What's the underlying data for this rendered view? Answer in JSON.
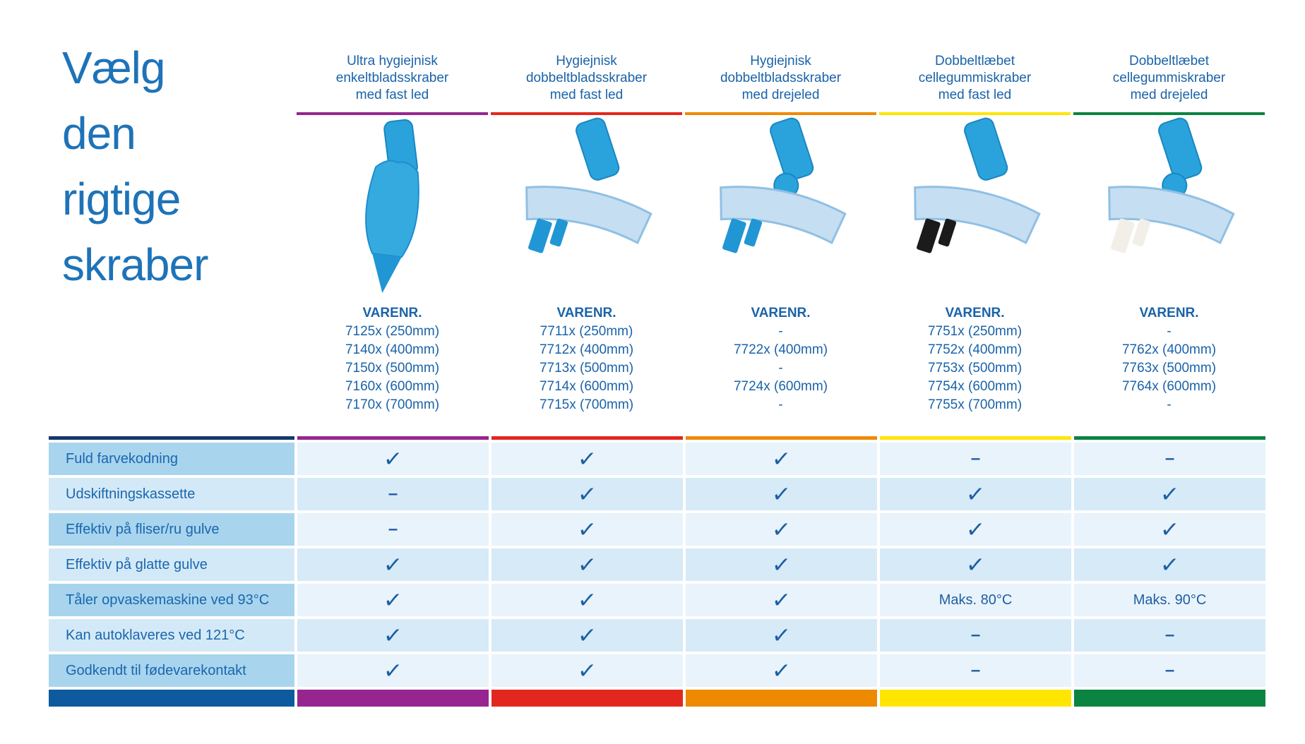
{
  "title": {
    "lines": [
      "Vælg",
      "den",
      "rigtige",
      "skraber"
    ],
    "color": "#1e73b8"
  },
  "varenr_heading": "VARENR.",
  "columns": [
    {
      "header_lines": [
        "Ultra hygiejnisk",
        "enkeltbladsskraber",
        "med fast led"
      ],
      "accent": "#97258f",
      "product_icon": "single-blade-squeegee-icon",
      "body_color": "#35aadf",
      "blade_color": "#2196d4",
      "items": [
        "7125x (250mm)",
        "7140x (400mm)",
        "7150x (500mm)",
        "7160x (600mm)",
        "7170x (700mm)"
      ]
    },
    {
      "header_lines": [
        "Hygiejnisk",
        "dobbeltbladsskraber",
        "med fast led"
      ],
      "accent": "#e2281e",
      "product_icon": "double-blade-squeegee-fixed-icon",
      "body_color": "#c6def1",
      "blade_color": "#2196d4",
      "items": [
        "7711x (250mm)",
        "7712x (400mm)",
        "7713x (500mm)",
        "7714x (600mm)",
        "7715x (700mm)"
      ]
    },
    {
      "header_lines": [
        "Hygiejnisk",
        "dobbeltbladsskraber",
        "med drejeled"
      ],
      "accent": "#ee8a00",
      "product_icon": "double-blade-squeegee-swivel-icon",
      "body_color": "#c6def1",
      "blade_color": "#2196d4",
      "items": [
        "-",
        "7722x (400mm)",
        "-",
        "7724x (600mm)",
        "-"
      ]
    },
    {
      "header_lines": [
        "Dobbeltlæbet",
        "cellegummiskraber",
        "med fast led"
      ],
      "accent": "#ffe500",
      "product_icon": "foam-rubber-squeegee-fixed-icon",
      "body_color": "#c6def1",
      "blade_color": "#1b1b1b",
      "items": [
        "7751x (250mm)",
        "7752x (400mm)",
        "7753x (500mm)",
        "7754x (600mm)",
        "7755x (700mm)"
      ]
    },
    {
      "header_lines": [
        "Dobbeltlæbet",
        "cellegummiskraber",
        "med drejeled"
      ],
      "accent": "#0a8440",
      "product_icon": "foam-rubber-squeegee-swivel-icon",
      "body_color": "#c6def1",
      "blade_color": "#f2efe8",
      "items": [
        "-",
        "7762x (400mm)",
        "7763x (500mm)",
        "7764x (600mm)",
        "-"
      ]
    }
  ],
  "table": {
    "check_symbol": "✓",
    "dash_symbol": "–",
    "label_top_bar_color": "#16386b",
    "label_bottom_bar_color": "#0d5b9e",
    "colors": {
      "header_text": "#1a63a9",
      "label_text": "#1a67ae",
      "mark": "#1d5fa2",
      "label_bg_dark": "#a8d4ee",
      "label_bg_light": "#d4e9f7",
      "cell_bg_light": "#e9f3fb",
      "cell_bg_dark": "#d6eaf7"
    },
    "rows": [
      {
        "label": "Fuld farvekodning",
        "values": [
          "check",
          "check",
          "check",
          "dash",
          "dash"
        ]
      },
      {
        "label": "Udskiftningskassette",
        "values": [
          "dash",
          "check",
          "check",
          "check",
          "check"
        ]
      },
      {
        "label": "Effektiv på fliser/ru gulve",
        "values": [
          "dash",
          "check",
          "check",
          "check",
          "check"
        ]
      },
      {
        "label": "Effektiv på glatte gulve",
        "values": [
          "check",
          "check",
          "check",
          "check",
          "check"
        ]
      },
      {
        "label": "Tåler opvaskemaskine ved 93°C",
        "values": [
          "check",
          "check",
          "check",
          "Maks. 80°C",
          "Maks. 90°C"
        ]
      },
      {
        "label": "Kan autoklaveres ved 121°C",
        "values": [
          "check",
          "check",
          "check",
          "dash",
          "dash"
        ]
      },
      {
        "label": "Godkendt til fødevarekontakt",
        "values": [
          "check",
          "check",
          "check",
          "dash",
          "dash"
        ]
      }
    ]
  }
}
